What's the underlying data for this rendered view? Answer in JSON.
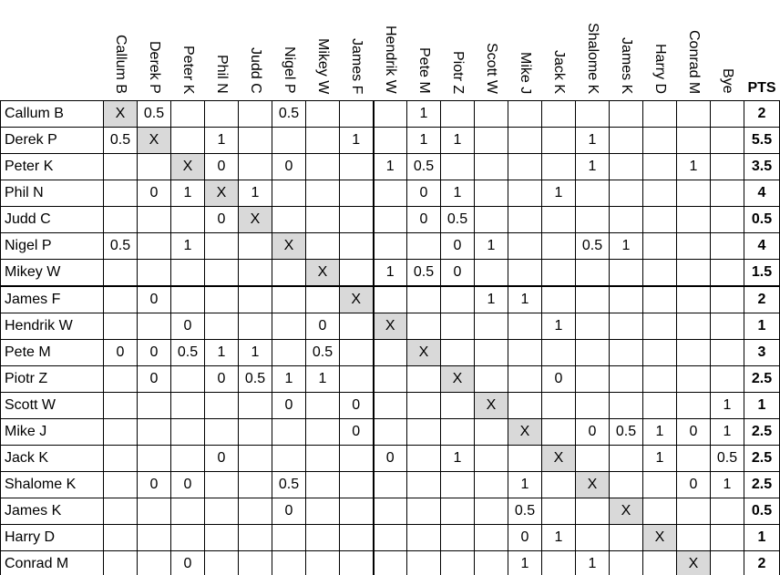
{
  "table": {
    "columns": [
      "Callum B",
      "Derek P",
      "Peter K",
      "Phil N",
      "Judd C",
      "Nigel P",
      "Mikey W",
      "James F",
      "Hendrik W",
      "Pete M",
      "Piotr Z",
      "Scott W",
      "Mike J",
      "Jack K",
      "Shalome K",
      "James K",
      "Harry D",
      "Conrad M",
      "Bye",
      "PTS"
    ],
    "rows": [
      {
        "name": "Callum B",
        "cells": [
          "X",
          "0.5",
          null,
          null,
          null,
          "0.5",
          null,
          null,
          null,
          "1",
          null,
          null,
          null,
          null,
          null,
          null,
          null,
          null,
          null
        ],
        "pts": "2"
      },
      {
        "name": "Derek P",
        "cells": [
          "0.5",
          "X",
          null,
          "1",
          null,
          null,
          null,
          "1",
          null,
          "1",
          "1",
          null,
          null,
          null,
          "1",
          null,
          null,
          null,
          null
        ],
        "pts": "5.5"
      },
      {
        "name": "Peter K",
        "cells": [
          null,
          null,
          "X",
          "0",
          null,
          "0",
          null,
          null,
          "1",
          "0.5",
          null,
          null,
          null,
          null,
          "1",
          null,
          null,
          "1",
          null
        ],
        "pts": "3.5"
      },
      {
        "name": "Phil N",
        "cells": [
          null,
          "0",
          "1",
          "X",
          "1",
          null,
          null,
          null,
          null,
          "0",
          "1",
          null,
          null,
          "1",
          null,
          null,
          null,
          null,
          null
        ],
        "pts": "4"
      },
      {
        "name": "Judd C",
        "cells": [
          null,
          null,
          null,
          "0",
          "X",
          null,
          null,
          null,
          null,
          "0",
          "0.5",
          null,
          null,
          null,
          null,
          null,
          null,
          null,
          null
        ],
        "pts": "0.5"
      },
      {
        "name": "Nigel P",
        "cells": [
          "0.5",
          null,
          "1",
          null,
          null,
          "X",
          null,
          null,
          null,
          null,
          "0",
          "1",
          null,
          null,
          "0.5",
          "1",
          null,
          null,
          null
        ],
        "pts": "4"
      },
      {
        "name": "Mikey W",
        "cells": [
          null,
          null,
          null,
          null,
          null,
          null,
          "X",
          null,
          "1",
          "0.5",
          "0",
          null,
          null,
          null,
          null,
          null,
          null,
          null,
          null
        ],
        "pts": "1.5"
      },
      {
        "name": "James F",
        "cells": [
          null,
          "0",
          null,
          null,
          null,
          null,
          null,
          "X",
          null,
          null,
          null,
          "1",
          "1",
          null,
          null,
          null,
          null,
          null,
          null
        ],
        "pts": "2"
      },
      {
        "name": "Hendrik W",
        "cells": [
          null,
          null,
          "0",
          null,
          null,
          null,
          "0",
          null,
          "X",
          null,
          null,
          null,
          null,
          "1",
          null,
          null,
          null,
          null,
          null
        ],
        "pts": "1"
      },
      {
        "name": "Pete M",
        "cells": [
          "0",
          "0",
          "0.5",
          "1",
          "1",
          null,
          "0.5",
          null,
          null,
          "X",
          null,
          null,
          null,
          null,
          null,
          null,
          null,
          null,
          null
        ],
        "pts": "3"
      },
      {
        "name": "Piotr Z",
        "cells": [
          null,
          "0",
          null,
          "0",
          "0.5",
          "1",
          "1",
          null,
          null,
          null,
          "X",
          null,
          null,
          "0",
          null,
          null,
          null,
          null,
          null
        ],
        "pts": "2.5"
      },
      {
        "name": "Scott W",
        "cells": [
          null,
          null,
          null,
          null,
          null,
          "0",
          null,
          "0",
          null,
          null,
          null,
          "X",
          null,
          null,
          null,
          null,
          null,
          null,
          "1"
        ],
        "pts": "1"
      },
      {
        "name": "Mike J",
        "cells": [
          null,
          null,
          null,
          null,
          null,
          null,
          null,
          "0",
          null,
          null,
          null,
          null,
          "X",
          null,
          "0",
          "0.5",
          "1",
          "0",
          "1"
        ],
        "pts": "2.5"
      },
      {
        "name": "Jack K",
        "cells": [
          null,
          null,
          null,
          "0",
          null,
          null,
          null,
          null,
          "0",
          null,
          "1",
          null,
          null,
          "X",
          null,
          null,
          "1",
          null,
          "0.5"
        ],
        "pts": "2.5"
      },
      {
        "name": "Shalome K",
        "cells": [
          null,
          "0",
          "0",
          null,
          null,
          "0.5",
          null,
          null,
          null,
          null,
          null,
          null,
          "1",
          null,
          "X",
          null,
          null,
          "0",
          "1"
        ],
        "pts": "2.5"
      },
      {
        "name": "James K",
        "cells": [
          null,
          null,
          null,
          null,
          null,
          "0",
          null,
          null,
          null,
          null,
          null,
          null,
          "0.5",
          null,
          null,
          "X",
          null,
          null,
          null
        ],
        "pts": "0.5"
      },
      {
        "name": "Harry D",
        "cells": [
          null,
          null,
          null,
          null,
          null,
          null,
          null,
          null,
          null,
          null,
          null,
          null,
          "0",
          "1",
          null,
          null,
          "X",
          null,
          null
        ],
        "pts": "1"
      },
      {
        "name": "Conrad M",
        "cells": [
          null,
          null,
          "0",
          null,
          null,
          null,
          null,
          null,
          null,
          null,
          null,
          null,
          "1",
          null,
          "1",
          null,
          null,
          "X",
          null
        ],
        "pts": "2"
      }
    ]
  }
}
